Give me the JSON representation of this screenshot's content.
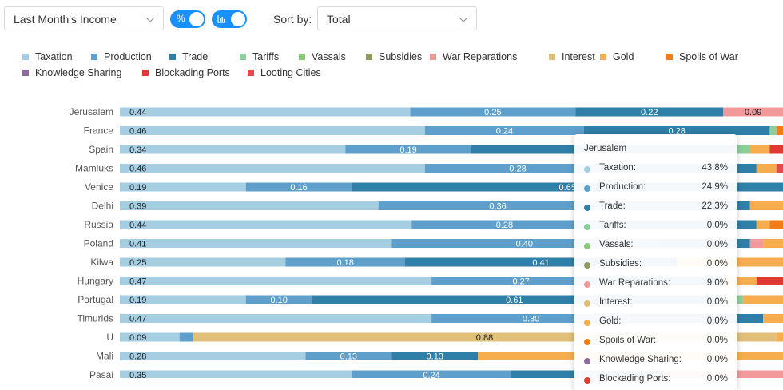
{
  "controls": {
    "income_select": "Last Month's Income",
    "toggle_percent_glyph": "%",
    "sort_label": "Sort by:",
    "sort_select": "Total"
  },
  "legend": [
    {
      "name": "Taxation",
      "color": "#a6cee3"
    },
    {
      "name": "Production",
      "color": "#5f9fcc"
    },
    {
      "name": "Trade",
      "color": "#2f7fa8"
    },
    {
      "name": "Tariffs",
      "color": "#8dcf9b"
    },
    {
      "name": "Vassals",
      "color": "#8ac87a"
    },
    {
      "name": "Subsidies",
      "color": "#8e9a5e"
    },
    {
      "name": "War Reparations",
      "color": "#f1999b"
    },
    {
      "name": "Interest",
      "color": "#e0c079"
    },
    {
      "name": "Gold",
      "color": "#f6ad4f"
    },
    {
      "name": "Spoils of War",
      "color": "#f27c18"
    },
    {
      "name": "Knowledge Sharing",
      "color": "#8e6a9e"
    },
    {
      "name": "Blockading Ports",
      "color": "#e03a32"
    },
    {
      "name": "Looting Cities",
      "color": "#e6494e"
    }
  ],
  "chart_data": {
    "type": "bar",
    "orientation": "horizontal",
    "stacked": true,
    "normalized": true,
    "categories": [
      "Jerusalem",
      "France",
      "Spain",
      "Mamluks",
      "Venice",
      "Delhi",
      "Russia",
      "Poland",
      "Kilwa",
      "Hungary",
      "Portugal",
      "Timurids",
      "U",
      "Mali",
      "Pasai"
    ],
    "series": [
      {
        "name": "Taxation",
        "values": [
          0.438,
          0.46,
          0.34,
          0.46,
          0.19,
          0.39,
          0.44,
          0.41,
          0.25,
          0.47,
          0.19,
          0.47,
          0.09,
          0.28,
          0.35
        ]
      },
      {
        "name": "Production",
        "values": [
          0.249,
          0.24,
          0.19,
          0.28,
          0.16,
          0.36,
          0.28,
          0.4,
          0.18,
          0.27,
          0.1,
          0.3,
          0.02,
          0.13,
          0.24
        ]
      },
      {
        "name": "Trade",
        "values": [
          0.223,
          0.28,
          0.4,
          0.22,
          0.65,
          0.2,
          0.24,
          0.14,
          0.41,
          0.17,
          0.61,
          0.2,
          0.0,
          0.13,
          0.23
        ]
      },
      {
        "name": "Tariffs",
        "values": [
          0.0,
          0.01,
          0.02,
          0.0,
          0.0,
          0.0,
          0.0,
          0.0,
          0.0,
          0.0,
          0.04,
          0.0,
          0.0,
          0.0,
          0.0
        ]
      },
      {
        "name": "Vassals",
        "values": [
          0.0,
          0.0,
          0.0,
          0.0,
          0.0,
          0.0,
          0.0,
          0.0,
          0.0,
          0.0,
          0.0,
          0.0,
          0.0,
          0.0,
          0.0
        ]
      },
      {
        "name": "Subsidies",
        "values": [
          0.0,
          0.0,
          0.0,
          0.0,
          0.0,
          0.0,
          0.0,
          0.0,
          0.0,
          0.0,
          0.0,
          0.0,
          0.0,
          0.0,
          0.0
        ]
      },
      {
        "name": "War Reparations",
        "values": [
          0.09,
          0.0,
          0.0,
          0.0,
          0.0,
          0.0,
          0.0,
          0.02,
          0.0,
          0.0,
          0.0,
          0.0,
          0.0,
          0.0,
          0.18
        ]
      },
      {
        "name": "Interest",
        "values": [
          0.0,
          0.0,
          0.0,
          0.0,
          0.0,
          0.0,
          0.0,
          0.0,
          0.0,
          0.0,
          0.0,
          0.0,
          0.88,
          0.0,
          0.0
        ]
      },
      {
        "name": "Gold",
        "values": [
          0.0,
          0.0,
          0.03,
          0.03,
          0.0,
          0.05,
          0.02,
          0.03,
          0.16,
          0.05,
          0.06,
          0.03,
          0.01,
          0.46,
          0.0
        ]
      },
      {
        "name": "Spoils of War",
        "values": [
          0.0,
          0.01,
          0.0,
          0.0,
          0.0,
          0.0,
          0.02,
          0.0,
          0.0,
          0.0,
          0.0,
          0.0,
          0.0,
          0.0,
          0.0
        ]
      },
      {
        "name": "Knowledge Sharing",
        "values": [
          0.0,
          0.0,
          0.0,
          0.0,
          0.0,
          0.0,
          0.0,
          0.0,
          0.0,
          0.0,
          0.0,
          0.0,
          0.0,
          0.0,
          0.0
        ]
      },
      {
        "name": "Blockading Ports",
        "values": [
          0.0,
          0.0,
          0.02,
          0.0,
          0.0,
          0.0,
          0.0,
          0.0,
          0.0,
          0.04,
          0.0,
          0.0,
          0.0,
          0.0,
          0.0
        ]
      },
      {
        "name": "Looting Cities",
        "values": [
          0.0,
          0.0,
          0.0,
          0.01,
          0.0,
          0.0,
          0.0,
          0.0,
          0.0,
          0.0,
          0.0,
          0.0,
          0.0,
          0.0,
          0.0
        ]
      }
    ],
    "xlim": [
      0,
      1
    ],
    "grid": false,
    "legend_position": "top-left"
  },
  "bar_labels": [
    [
      "0.44",
      "0.25",
      "0.22",
      "",
      "",
      "",
      "0.09"
    ],
    [
      "0.46",
      "0.24",
      "0.28"
    ],
    [
      "0.34",
      "0.19",
      "0.40"
    ],
    [
      "0.46",
      "0.28"
    ],
    [
      "0.19",
      "0.16",
      "0.65"
    ],
    [
      "0.39",
      "0.36"
    ],
    [
      "0.44",
      "0.28"
    ],
    [
      "0.41",
      "0.40"
    ],
    [
      "0.25",
      "0.18",
      "0.41"
    ],
    [
      "0.47",
      "0.27"
    ],
    [
      "0.19",
      "0.10",
      "0.61"
    ],
    [
      "0.47",
      "0.30"
    ],
    [
      "0.09",
      "",
      "",
      "",
      "",
      "",
      "",
      "0.88"
    ],
    [
      "0.28",
      "0.13",
      "0.13",
      "",
      "",
      "",
      "",
      "",
      "0.46"
    ],
    [
      "0.35",
      "0.24",
      "0.23"
    ]
  ],
  "tooltip": {
    "title": "Jerusalem",
    "rows": [
      {
        "name": "Taxation:",
        "value": "43.8%",
        "color": "#a6cee3"
      },
      {
        "name": "Production:",
        "value": "24.9%",
        "color": "#5f9fcc"
      },
      {
        "name": "Trade:",
        "value": "22.3%",
        "color": "#2f7fa8"
      },
      {
        "name": "Tariffs:",
        "value": "0.0%",
        "color": "#8dcf9b"
      },
      {
        "name": "Vassals:",
        "value": "0.0%",
        "color": "#8ac87a"
      },
      {
        "name": "Subsidies:",
        "value": "0.0%",
        "color": "#8e9a5e"
      },
      {
        "name": "War Reparations:",
        "value": "9.0%",
        "color": "#f1999b"
      },
      {
        "name": "Interest:",
        "value": "0.0%",
        "color": "#e0c079"
      },
      {
        "name": "Gold:",
        "value": "0.0%",
        "color": "#f6ad4f"
      },
      {
        "name": "Spoils of War:",
        "value": "0.0%",
        "color": "#f27c18"
      },
      {
        "name": "Knowledge Sharing:",
        "value": "0.0%",
        "color": "#8e6a9e"
      },
      {
        "name": "Blockading Ports:",
        "value": "0.0%",
        "color": "#e03a32"
      }
    ]
  }
}
